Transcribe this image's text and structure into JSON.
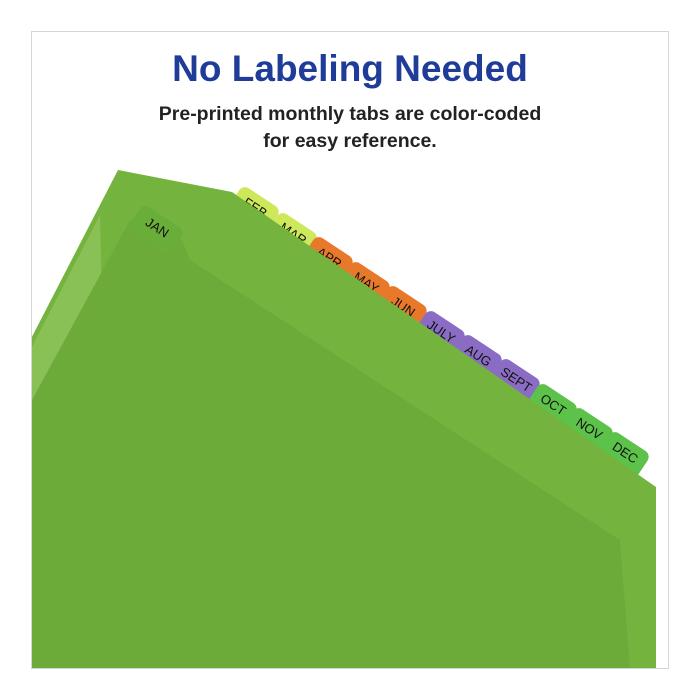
{
  "headline": "No Labeling Needed",
  "subheadline_line1": "Pre-printed monthly tabs are color-coded",
  "subheadline_line2": "for easy reference.",
  "colors": {
    "headline": "#1f3c98",
    "folder": "#6aae3a",
    "yellow_green": "#cde85a",
    "orange": "#e8782a",
    "purple": "#8a6cc4",
    "green": "#5cc24a"
  },
  "tabs": [
    {
      "label": "FEB",
      "color": "#cde85a"
    },
    {
      "label": "MAR",
      "color": "#cde85a"
    },
    {
      "label": "APR",
      "color": "#e8782a"
    },
    {
      "label": "MAY",
      "color": "#e8782a"
    },
    {
      "label": "JUN",
      "color": "#e8782a"
    },
    {
      "label": "JULY",
      "color": "#8a6cc4"
    },
    {
      "label": "AUG",
      "color": "#8a6cc4"
    },
    {
      "label": "SEPT",
      "color": "#8a6cc4"
    },
    {
      "label": "OCT",
      "color": "#5cc24a"
    },
    {
      "label": "NOV",
      "color": "#5cc24a"
    },
    {
      "label": "DEC",
      "color": "#5cc24a"
    }
  ],
  "front_tab": {
    "label": "JAN",
    "color": "#6aae3a"
  }
}
